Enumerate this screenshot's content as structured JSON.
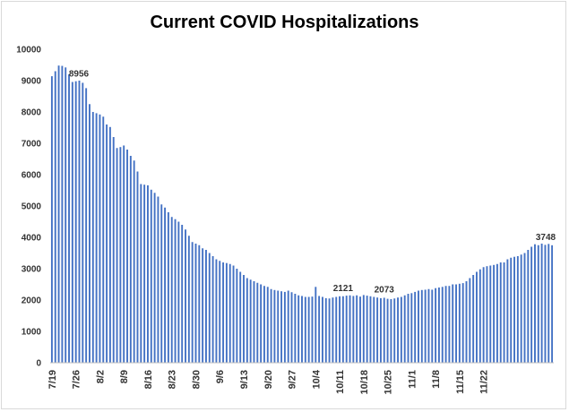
{
  "chart_data": {
    "type": "bar",
    "title": "Current COVID Hospitalizations",
    "ylim": [
      0,
      10000
    ],
    "yticks": [
      0,
      1000,
      2000,
      3000,
      4000,
      5000,
      6000,
      7000,
      8000,
      9000,
      10000
    ],
    "grid": false,
    "legend": "none",
    "bar_color": "#4472c4",
    "x_tick_labels": [
      "7/19",
      "7/26",
      "8/2",
      "8/9",
      "8/16",
      "8/23",
      "8/30",
      "9/6",
      "9/13",
      "9/20",
      "9/27",
      "10/4",
      "10/11",
      "10/18",
      "10/25",
      "11/1",
      "11/8",
      "11/15",
      "11/22"
    ],
    "x_tick_every": 7,
    "values": [
      9140,
      9300,
      9480,
      9470,
      9420,
      9200,
      8956,
      8980,
      9000,
      8930,
      8760,
      8250,
      8000,
      7960,
      7920,
      7850,
      7600,
      7520,
      7200,
      6850,
      6880,
      6930,
      6800,
      6600,
      6450,
      6100,
      5700,
      5680,
      5660,
      5520,
      5420,
      5300,
      5050,
      4950,
      4800,
      4650,
      4580,
      4500,
      4400,
      4250,
      4050,
      3850,
      3800,
      3750,
      3650,
      3600,
      3500,
      3400,
      3300,
      3250,
      3200,
      3180,
      3150,
      3100,
      3000,
      2900,
      2800,
      2700,
      2650,
      2600,
      2550,
      2500,
      2450,
      2420,
      2350,
      2320,
      2300,
      2280,
      2260,
      2300,
      2250,
      2200,
      2150,
      2130,
      2100,
      2100,
      2110,
      2420,
      2130,
      2100,
      2060,
      2050,
      2080,
      2100,
      2120,
      2121,
      2140,
      2150,
      2130,
      2150,
      2110,
      2160,
      2140,
      2120,
      2100,
      2080,
      2060,
      2073,
      2040,
      2030,
      2050,
      2080,
      2100,
      2150,
      2200,
      2220,
      2260,
      2300,
      2320,
      2330,
      2350,
      2330,
      2380,
      2400,
      2420,
      2450,
      2450,
      2500,
      2500,
      2520,
      2540,
      2600,
      2700,
      2800,
      2900,
      2980,
      3050,
      3080,
      3100,
      3120,
      3150,
      3200,
      3200,
      3300,
      3350,
      3380,
      3400,
      3450,
      3500,
      3600,
      3700,
      3780,
      3750,
      3800,
      3760,
      3790,
      3748
    ],
    "data_labels": [
      {
        "index": 6,
        "text": "8956"
      },
      {
        "index": 85,
        "text": "2121"
      },
      {
        "index": 97,
        "text": "2073"
      },
      {
        "index": 146,
        "text": "3748"
      }
    ]
  }
}
